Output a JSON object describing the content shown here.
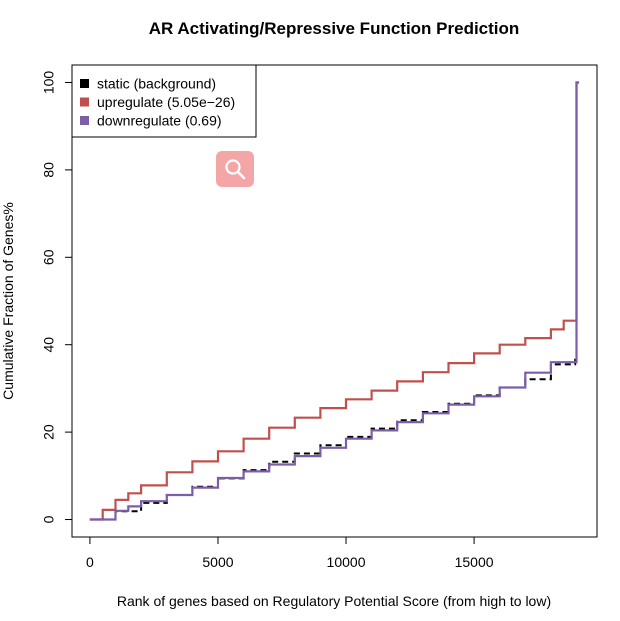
{
  "chart_data": {
    "type": "line",
    "title": "AR Activating/Repressive Function Prediction",
    "xlabel": "Rank of genes based on Regulatory Potential Score (from high to low)",
    "ylabel": "Cumulative Fraction of Genes%",
    "xlim": [
      -700,
      19800
    ],
    "ylim": [
      -4,
      104
    ],
    "xticks": [
      0,
      5000,
      10000,
      15000
    ],
    "yticks": [
      0,
      20,
      40,
      60,
      80,
      100
    ],
    "legend_position": "top-left",
    "series": [
      {
        "name": "static (background)",
        "color": "#000000",
        "style": "dashed",
        "x": [
          0,
          1000,
          2000,
          3000,
          4000,
          5000,
          6000,
          7000,
          8000,
          9000,
          10000,
          11000,
          12000,
          13000,
          14000,
          15000,
          16000,
          17000,
          18000,
          18950,
          19000,
          19000,
          19100
        ],
        "y": [
          0,
          1.9,
          3.8,
          5.6,
          7.5,
          9.4,
          11.3,
          13.2,
          15.1,
          17.0,
          18.9,
          20.8,
          22.7,
          24.6,
          26.5,
          28.4,
          30.2,
          32.1,
          35.5,
          37.5,
          37.5,
          100,
          100
        ]
      },
      {
        "name": "upregulate (5.05e−26)",
        "color": "#c0504d",
        "style": "solid",
        "x": [
          0,
          500,
          1000,
          1500,
          2000,
          3000,
          4000,
          5000,
          6000,
          7000,
          8000,
          9000,
          10000,
          11000,
          12000,
          13000,
          14000,
          15000,
          16000,
          17000,
          18000,
          18500,
          19000,
          19000,
          19100
        ],
        "y": [
          0,
          2.2,
          4.5,
          6,
          7.8,
          10.8,
          13.3,
          15.6,
          18.5,
          21,
          23.3,
          25.5,
          27.5,
          29.5,
          31.6,
          33.7,
          35.8,
          38,
          40,
          41.5,
          43.5,
          45.5,
          46,
          100,
          100
        ]
      },
      {
        "name": "downregulate (0.69)",
        "color": "#7b5ea7",
        "style": "solid",
        "x": [
          0,
          1000,
          1500,
          2000,
          3000,
          4000,
          5000,
          6000,
          7000,
          8000,
          9000,
          10000,
          11000,
          12000,
          13000,
          14000,
          15000,
          16000,
          17000,
          18000,
          19000,
          19000,
          19100
        ],
        "y": [
          0,
          2,
          3,
          4.2,
          5.6,
          7.3,
          9.5,
          11,
          12.6,
          14.5,
          16.4,
          18.5,
          20.4,
          22.3,
          24.3,
          26.3,
          28.2,
          30.2,
          33.6,
          36,
          37.5,
          100,
          100
        ]
      }
    ]
  }
}
